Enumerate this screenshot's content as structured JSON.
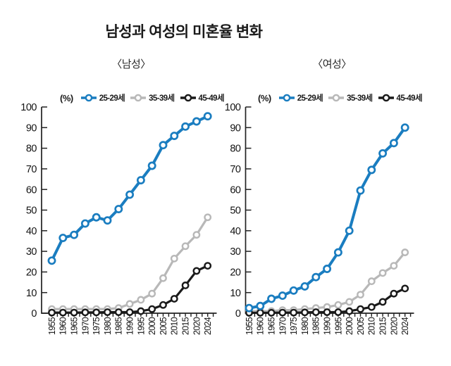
{
  "title": "남성과 여성의 미혼율 변화",
  "unit_label": "(%)",
  "colors": {
    "blue": "#1a7dc0",
    "gray": "#b8b8b8",
    "black": "#1a1a1a",
    "axis": "#222222",
    "text": "#141414",
    "background": "#ffffff"
  },
  "chart_data": [
    {
      "type": "line",
      "title": "〈남성〉",
      "ylabel": "(%)",
      "xlabel": "",
      "ylim": [
        0,
        100
      ],
      "ytick_step": 10,
      "grid": false,
      "legend_position": "top",
      "marker": "open-circle",
      "categories": [
        "1955",
        "1960",
        "1965",
        "1970",
        "1975",
        "1980",
        "1985",
        "1990",
        "1995",
        "2000",
        "2005",
        "2010",
        "2015",
        "2020",
        "2024"
      ],
      "series": [
        {
          "name": "25-29세",
          "color": "#1a7dc0",
          "values": [
            25.5,
            36.5,
            38,
            43.5,
            46.5,
            45,
            50.5,
            57.5,
            64.5,
            71.5,
            81.5,
            86,
            90.5,
            93,
            95.5
          ]
        },
        {
          "name": "35-39세",
          "color": "#b8b8b8",
          "values": [
            2,
            2,
            2,
            2,
            2,
            2,
            2.5,
            4.5,
            6.5,
            9.5,
            17,
            26.5,
            32.5,
            38,
            46.5
          ]
        },
        {
          "name": "45-49세",
          "color": "#1a1a1a",
          "values": [
            0.3,
            0.3,
            0.3,
            0.4,
            0.4,
            0.5,
            0.5,
            0.5,
            1,
            2,
            4,
            7,
            13.5,
            20.5,
            23
          ]
        }
      ]
    },
    {
      "type": "line",
      "title": "〈여성〉",
      "ylabel": "(%)",
      "xlabel": "",
      "ylim": [
        0,
        100
      ],
      "ytick_step": 10,
      "grid": false,
      "legend_position": "top",
      "marker": "open-circle",
      "categories": [
        "1955",
        "1960",
        "1965",
        "1970",
        "1975",
        "1980",
        "1985",
        "1990",
        "1995",
        "2000",
        "2005",
        "2010",
        "2015",
        "2020",
        "2024"
      ],
      "series": [
        {
          "name": "25-29세",
          "color": "#1a7dc0",
          "values": [
            2.5,
            3.5,
            7,
            8.5,
            11,
            13,
            17.5,
            21.5,
            29.5,
            40,
            59.5,
            69.5,
            77.5,
            82.5,
            90
          ]
        },
        {
          "name": "35-39세",
          "color": "#b8b8b8",
          "values": [
            1,
            1,
            1,
            1.5,
            1.5,
            2,
            2.5,
            3,
            4,
            5.5,
            9,
            15.5,
            19.5,
            23,
            29.5
          ]
        },
        {
          "name": "45-49세",
          "color": "#1a1a1a",
          "values": [
            0.2,
            0.2,
            0.2,
            0.3,
            0.3,
            0.4,
            0.5,
            0.5,
            0.5,
            1,
            2,
            3,
            5.5,
            9.5,
            12
          ]
        }
      ]
    }
  ]
}
